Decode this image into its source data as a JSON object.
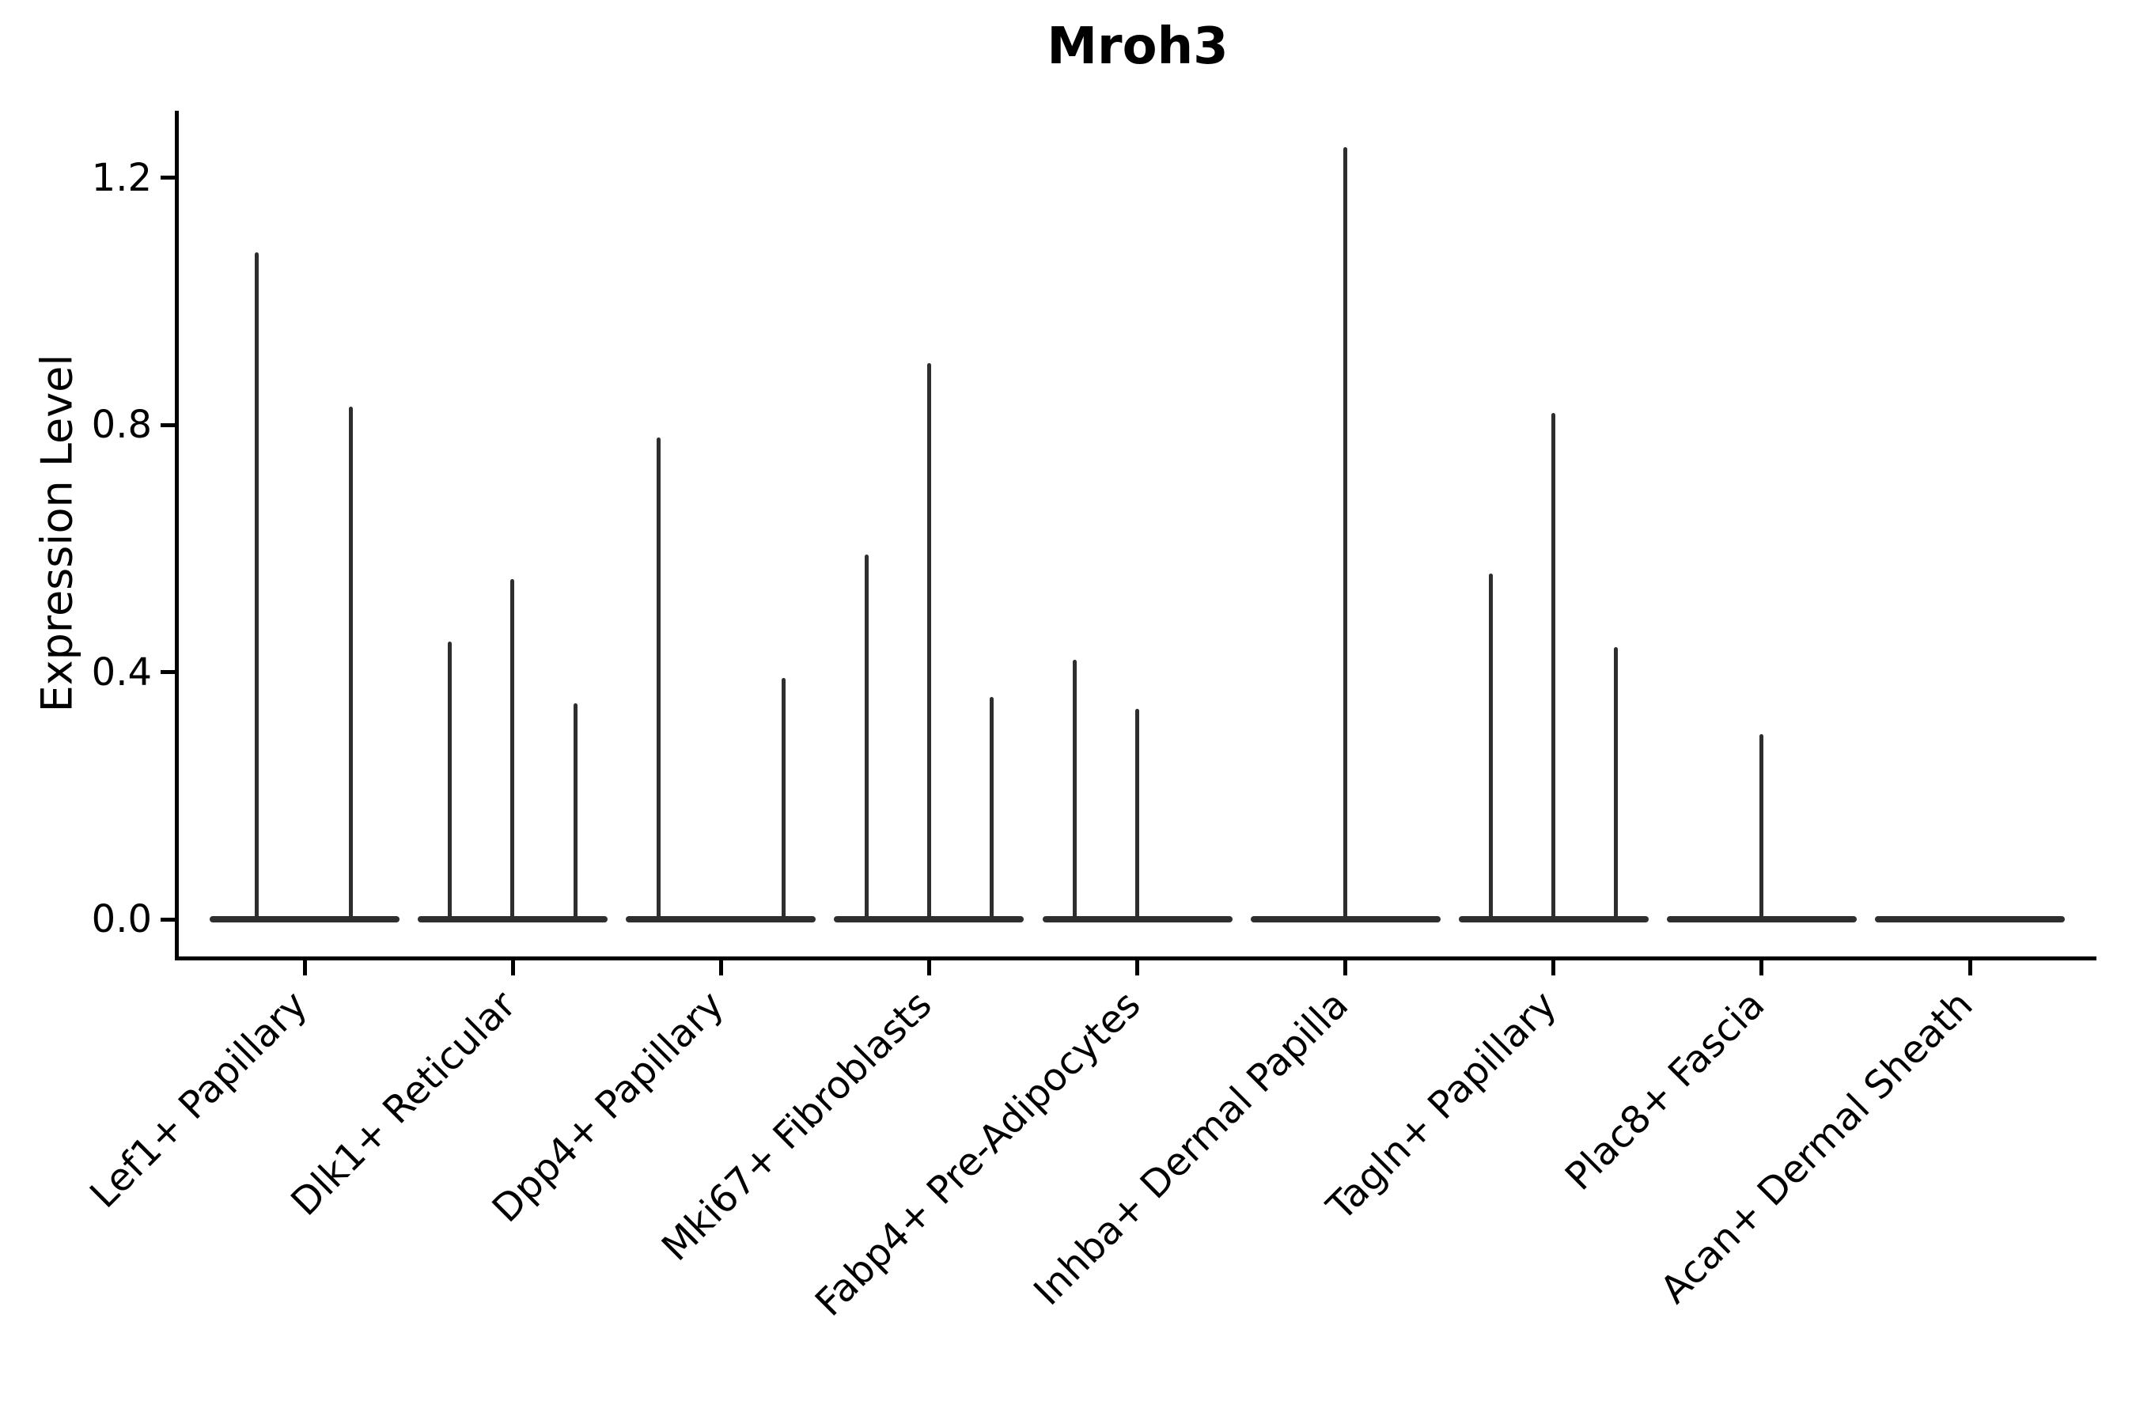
{
  "chart_data": {
    "type": "violin",
    "title": "Mroh3",
    "ylabel": "Expression Level",
    "xlabel": "",
    "yticks": [
      0.0,
      0.4,
      0.8,
      1.2
    ],
    "ytick_labels": [
      "0.0",
      "0.4",
      "0.8",
      "1.2"
    ],
    "ylim": [
      0.0,
      1.31
    ],
    "grid": false,
    "legend": "none",
    "colors": {
      "violin": "#2e2e2e",
      "spine": "#000000",
      "text": "#000000",
      "background": "#ffffff"
    },
    "categories": [
      {
        "label": "Lef1+ Papillary",
        "spikes": [
          {
            "offset": -61,
            "value": 1.08
          },
          {
            "offset": 58,
            "value": 0.83
          }
        ]
      },
      {
        "label": "Dlk1+ Reticular",
        "spikes": [
          {
            "offset": -80,
            "value": 0.45
          },
          {
            "offset": -1,
            "value": 0.55
          },
          {
            "offset": 79,
            "value": 0.35
          }
        ]
      },
      {
        "label": "Dpp4+ Papillary",
        "spikes": [
          {
            "offset": -79,
            "value": 0.78
          },
          {
            "offset": 79,
            "value": 0.39
          }
        ]
      },
      {
        "label": "Mki67+ Fibroblasts",
        "spikes": [
          {
            "offset": -79,
            "value": 0.59
          },
          {
            "offset": 0,
            "value": 0.9
          },
          {
            "offset": 79,
            "value": 0.36
          }
        ]
      },
      {
        "label": "Fabp4+ Pre-Adipocytes",
        "spikes": [
          {
            "offset": -79,
            "value": 0.42
          },
          {
            "offset": 0,
            "value": 0.34
          }
        ]
      },
      {
        "label": "Inhba+ Dermal Papilla",
        "spikes": [
          {
            "offset": 0,
            "value": 1.25
          }
        ]
      },
      {
        "label": "Tagln+ Papillary",
        "spikes": [
          {
            "offset": -79,
            "value": 0.56
          },
          {
            "offset": 0,
            "value": 0.82
          },
          {
            "offset": 79,
            "value": 0.44
          }
        ]
      },
      {
        "label": "Plac8+ Fascia",
        "spikes": [
          {
            "offset": 0,
            "value": 0.3
          }
        ]
      },
      {
        "label": "Acan+ Dermal Sheath",
        "spikes": []
      }
    ]
  }
}
